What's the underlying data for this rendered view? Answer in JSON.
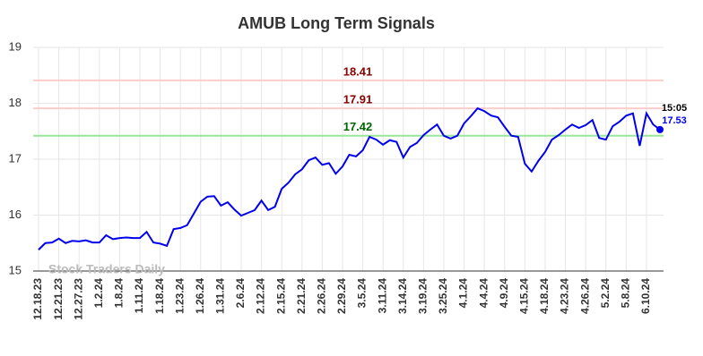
{
  "chart_data": {
    "type": "line",
    "title": "AMUB Long Term Signals",
    "categories": [
      "12.18.23",
      null,
      null,
      "12.21.23",
      null,
      null,
      "12.27.23",
      null,
      null,
      "1.2.24",
      null,
      null,
      "1.8.24",
      null,
      null,
      "1.11.24",
      null,
      null,
      "1.18.24",
      null,
      null,
      "1.23.24",
      null,
      null,
      "1.26.24",
      null,
      null,
      "1.31.24",
      null,
      null,
      "2.6.24",
      null,
      null,
      "2.12.24",
      null,
      null,
      "2.15.24",
      null,
      null,
      "2.21.24",
      null,
      null,
      "2.26.24",
      null,
      null,
      "2.29.24",
      null,
      null,
      "3.5.24",
      null,
      null,
      "3.11.24",
      null,
      null,
      "3.14.24",
      null,
      null,
      "3.19.24",
      null,
      null,
      "3.25.24",
      null,
      null,
      "4.1.24",
      null,
      null,
      "4.4.24",
      null,
      null,
      "4.9.24",
      null,
      null,
      "4.15.24",
      null,
      null,
      "4.18.24",
      null,
      null,
      "4.23.24",
      null,
      null,
      "4.26.24",
      null,
      null,
      "5.2.24",
      null,
      null,
      "5.8.24",
      null,
      null,
      "6.10.24",
      null,
      null
    ],
    "series": [
      {
        "color": "#0000ee",
        "values": [
          15.38,
          15.5,
          15.51,
          15.58,
          15.5,
          15.54,
          15.53,
          15.55,
          15.51,
          15.51,
          15.64,
          15.57,
          15.59,
          15.6,
          15.59,
          15.59,
          15.7,
          15.51,
          15.49,
          15.45,
          15.75,
          15.77,
          15.82,
          16.03,
          16.24,
          16.33,
          16.34,
          16.17,
          16.23,
          16.1,
          15.99,
          16.04,
          16.09,
          16.26,
          16.09,
          16.15,
          16.47,
          16.58,
          16.73,
          16.82,
          16.98,
          17.03,
          16.9,
          16.93,
          16.74,
          16.87,
          17.08,
          17.05,
          17.16,
          17.4,
          17.35,
          17.26,
          17.34,
          17.31,
          17.03,
          17.22,
          17.29,
          17.43,
          17.53,
          17.62,
          17.42,
          17.37,
          17.42,
          17.64,
          17.77,
          17.91,
          17.86,
          17.78,
          17.75,
          17.58,
          17.42,
          17.4,
          16.92,
          16.78,
          16.97,
          17.13,
          17.35,
          17.43,
          17.53,
          17.62,
          17.56,
          17.61,
          17.7,
          17.38,
          17.35,
          17.59,
          17.67,
          17.78,
          17.82,
          17.24,
          17.82,
          17.62,
          17.53
        ]
      }
    ],
    "hlines": [
      {
        "value": 18.41,
        "color": "#ffcccc",
        "label_color": "#8b0000"
      },
      {
        "value": 17.91,
        "color": "#ffcccc",
        "label_color": "#8b0000"
      },
      {
        "value": 17.42,
        "color": "#99e699",
        "label_color": "#006400"
      }
    ],
    "last_time": "15:05",
    "watermark": "Stock Traders Daily",
    "ylim": [
      15,
      19
    ],
    "yticks": [
      15,
      16,
      17,
      18,
      19
    ],
    "grid": true
  }
}
